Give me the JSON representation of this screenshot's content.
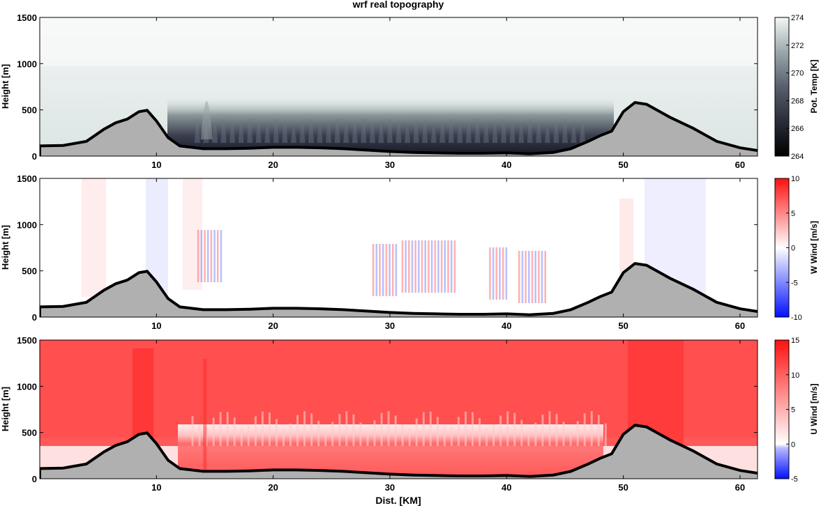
{
  "title": "wrf real topography",
  "xlabel": "Dist. [KM]",
  "colors": {
    "terrain": "#b0b0b0",
    "outline": "#000000",
    "red": "#ff2020",
    "blue": "#2040ff"
  },
  "chart_data": [
    {
      "type": "heatmap",
      "variable": "potential_temperature",
      "ylabel": "Height [m]",
      "colorbar_label": "Pot. Temp [K]",
      "xlim": [
        0,
        61.5
      ],
      "ylim": [
        0,
        1500
      ],
      "x_ticks": [
        10,
        20,
        30,
        40,
        50,
        60
      ],
      "y_ticks": [
        0,
        500,
        1000,
        1500
      ],
      "colorbar_ticks": [
        264,
        266,
        268,
        270,
        272,
        274
      ],
      "clim": [
        264,
        274
      ],
      "colormap": "bone"
    },
    {
      "type": "heatmap",
      "variable": "vertical_wind",
      "ylabel": "Height [m]",
      "colorbar_label": "W Wind [m/s]",
      "xlim": [
        0,
        61.5
      ],
      "ylim": [
        0,
        1500
      ],
      "x_ticks": [
        10,
        20,
        30,
        40,
        50,
        60
      ],
      "y_ticks": [
        0,
        500,
        1000,
        1500
      ],
      "colorbar_ticks": [
        10,
        5,
        0,
        -5,
        -10
      ],
      "clim": [
        -10,
        10
      ],
      "colormap": "blue-white-red"
    },
    {
      "type": "heatmap",
      "variable": "horizontal_wind",
      "ylabel": "Height [m]",
      "colorbar_label": "U Wind [m/s]",
      "xlim": [
        0,
        61.5
      ],
      "ylim": [
        0,
        1500
      ],
      "x_ticks": [
        10,
        20,
        30,
        40,
        50,
        60
      ],
      "y_ticks": [
        0,
        500,
        1000,
        1500
      ],
      "colorbar_ticks": [
        15,
        10,
        5,
        0,
        -5
      ],
      "clim": [
        -5,
        15
      ],
      "colormap": "blue-white-red"
    }
  ],
  "terrain": {
    "x": [
      0,
      2,
      4,
      5.5,
      6.5,
      7.5,
      8.5,
      9.2,
      10,
      11,
      12,
      14,
      16,
      18,
      20,
      22,
      24,
      26,
      28,
      30,
      32,
      34,
      36,
      38,
      40,
      42,
      44,
      45.5,
      47,
      48,
      49,
      50,
      51,
      52,
      53,
      54,
      56,
      58,
      60,
      61.5
    ],
    "height": [
      110,
      115,
      160,
      290,
      360,
      400,
      480,
      495,
      380,
      200,
      110,
      80,
      80,
      85,
      95,
      95,
      90,
      80,
      65,
      50,
      40,
      35,
      30,
      30,
      35,
      25,
      40,
      80,
      160,
      220,
      270,
      480,
      580,
      560,
      490,
      420,
      300,
      160,
      90,
      60
    ]
  }
}
